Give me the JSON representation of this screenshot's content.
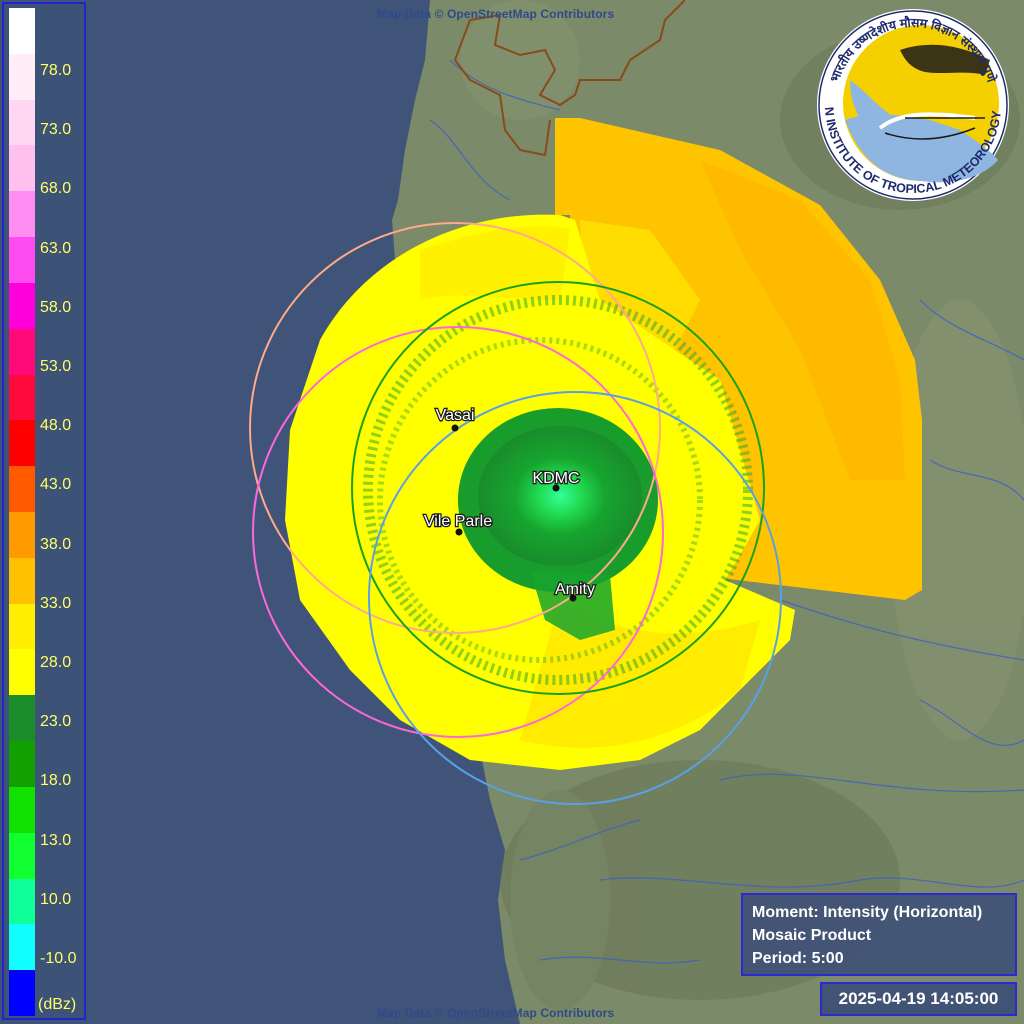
{
  "attribution": "Map Data © OpenStreetMap Contributors",
  "legend": {
    "unit": "(dBz)",
    "ticks": [
      "78.0",
      "73.0",
      "68.0",
      "63.0",
      "58.0",
      "53.0",
      "48.0",
      "43.0",
      "38.0",
      "33.0",
      "28.0",
      "23.0",
      "18.0",
      "13.0",
      "10.0",
      "-10.0"
    ],
    "colors": [
      "#ffffff",
      "#ffeef8",
      "#ffd7f3",
      "#ffc0f0",
      "#ff8cf0",
      "#ff4cf0",
      "#ff00dc",
      "#ff0a78",
      "#ff0a3c",
      "#ff0000",
      "#ff5a00",
      "#ff9a00",
      "#ffc000",
      "#ffee00",
      "#ffff00",
      "#1a8c2a",
      "#11a000",
      "#11e000",
      "#11ff30",
      "#11ff99",
      "#11ffff",
      "#0000ff"
    ]
  },
  "sites": [
    {
      "name": "KDMC",
      "color": "#1aa01a"
    },
    {
      "name": "Vasai",
      "color": "#ffaa88"
    },
    {
      "name": "Vile Parle",
      "color": "#ff66dd"
    },
    {
      "name": "Amity",
      "color": "#5aa0e8"
    }
  ],
  "logo": {
    "text_top": "भारतीय उष्णदेशीय मौसम विज्ञान संस्थान पुणे",
    "text_bottom": "INDIAN INSTITUTE OF TROPICAL METEOROLOGY PUNE"
  },
  "info": {
    "moment": "Moment: Intensity (Horizontal)",
    "product": "Mosaic Product",
    "period": "Period: 5:00"
  },
  "timestamp": "2025-04-19 14:05:00"
}
